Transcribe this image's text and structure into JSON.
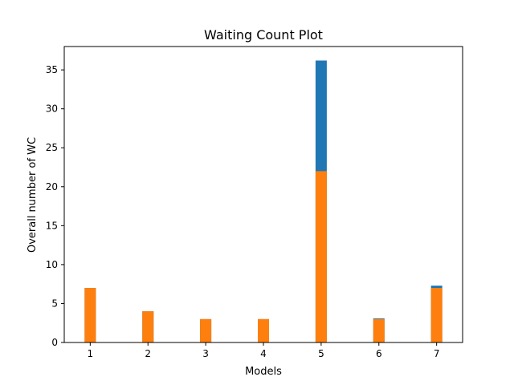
{
  "chart_data": {
    "type": "bar",
    "title": "Waiting Count Plot",
    "xlabel": "Models",
    "ylabel": "Overall number of WC",
    "categories": [
      "1",
      "2",
      "3",
      "4",
      "5",
      "6",
      "7"
    ],
    "x": [
      1,
      2,
      3,
      4,
      5,
      6,
      7
    ],
    "yticks": [
      "0",
      "5",
      "10",
      "15",
      "20",
      "25",
      "30",
      "35"
    ],
    "ylim": [
      0,
      38
    ],
    "xlim": [
      0.55,
      7.45
    ],
    "grid": false,
    "series": [
      {
        "values": [
          7,
          4,
          3,
          3,
          36.2,
          3.1,
          7.3
        ],
        "color": "#1f77b4"
      },
      {
        "values": [
          7,
          4,
          3,
          3,
          22,
          3,
          7
        ],
        "color": "#ff7f0e"
      }
    ]
  }
}
